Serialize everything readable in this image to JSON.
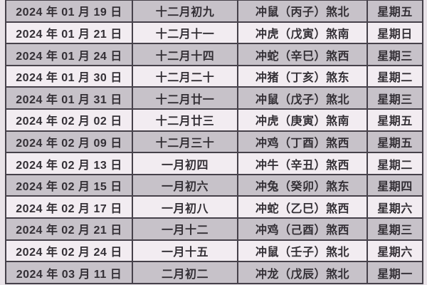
{
  "table": {
    "rows": [
      {
        "date": "2024 年 01 月 19 日",
        "lunar": "十二月初九",
        "clash": "冲鼠（丙子）煞北",
        "weekday": "星期五"
      },
      {
        "date": "2024 年 01 月 21 日",
        "lunar": "十二月十一",
        "clash": "冲虎（戊寅）煞南",
        "weekday": "星期日"
      },
      {
        "date": "2024 年 01 月 24 日",
        "lunar": "十二月十四",
        "clash": "冲蛇（辛巳）煞西",
        "weekday": "星期三"
      },
      {
        "date": "2024 年 01 月 30 日",
        "lunar": "十二月二十",
        "clash": "冲猪（丁亥）煞东",
        "weekday": "星期二"
      },
      {
        "date": "2024 年 01 月 31 日",
        "lunar": "十二月廿一",
        "clash": "冲鼠（戊子）煞北",
        "weekday": "星期三"
      },
      {
        "date": "2024 年 02 月 02 日",
        "lunar": "十二月廿三",
        "clash": "冲虎（庚寅）煞南",
        "weekday": "星期五"
      },
      {
        "date": "2024 年 02 月 09 日",
        "lunar": "十二月三十",
        "clash": "冲鸡（丁酉）煞西",
        "weekday": "星期五"
      },
      {
        "date": "2024 年 02 月 13 日",
        "lunar": "一月初四",
        "clash": "冲牛（辛丑）煞西",
        "weekday": "星期二"
      },
      {
        "date": "2024 年 02 月 15 日",
        "lunar": "一月初六",
        "clash": "冲兔（癸卯）煞东",
        "weekday": "星期四"
      },
      {
        "date": "2024 年 02 月 17 日",
        "lunar": "一月初八",
        "clash": "冲蛇（乙巳）煞西",
        "weekday": "星期六"
      },
      {
        "date": "2024 年 02 月 21 日",
        "lunar": "一月十二",
        "clash": "冲鸡（己酉）煞西",
        "weekday": "星期三"
      },
      {
        "date": "2024 年 02 月 24 日",
        "lunar": "一月十五",
        "clash": "冲鼠（壬子）煞北",
        "weekday": "星期六"
      },
      {
        "date": "2024 年 03 月 11 日",
        "lunar": "二月初二",
        "clash": "冲龙（戊辰）煞北",
        "weekday": "星期一"
      }
    ]
  },
  "colors": {
    "row_shaded": "#c7c2c9",
    "row_light": "#f2ecf1",
    "grid_line": "#46414a",
    "text": "#332f35",
    "page_background": "#e9e3e8"
  }
}
